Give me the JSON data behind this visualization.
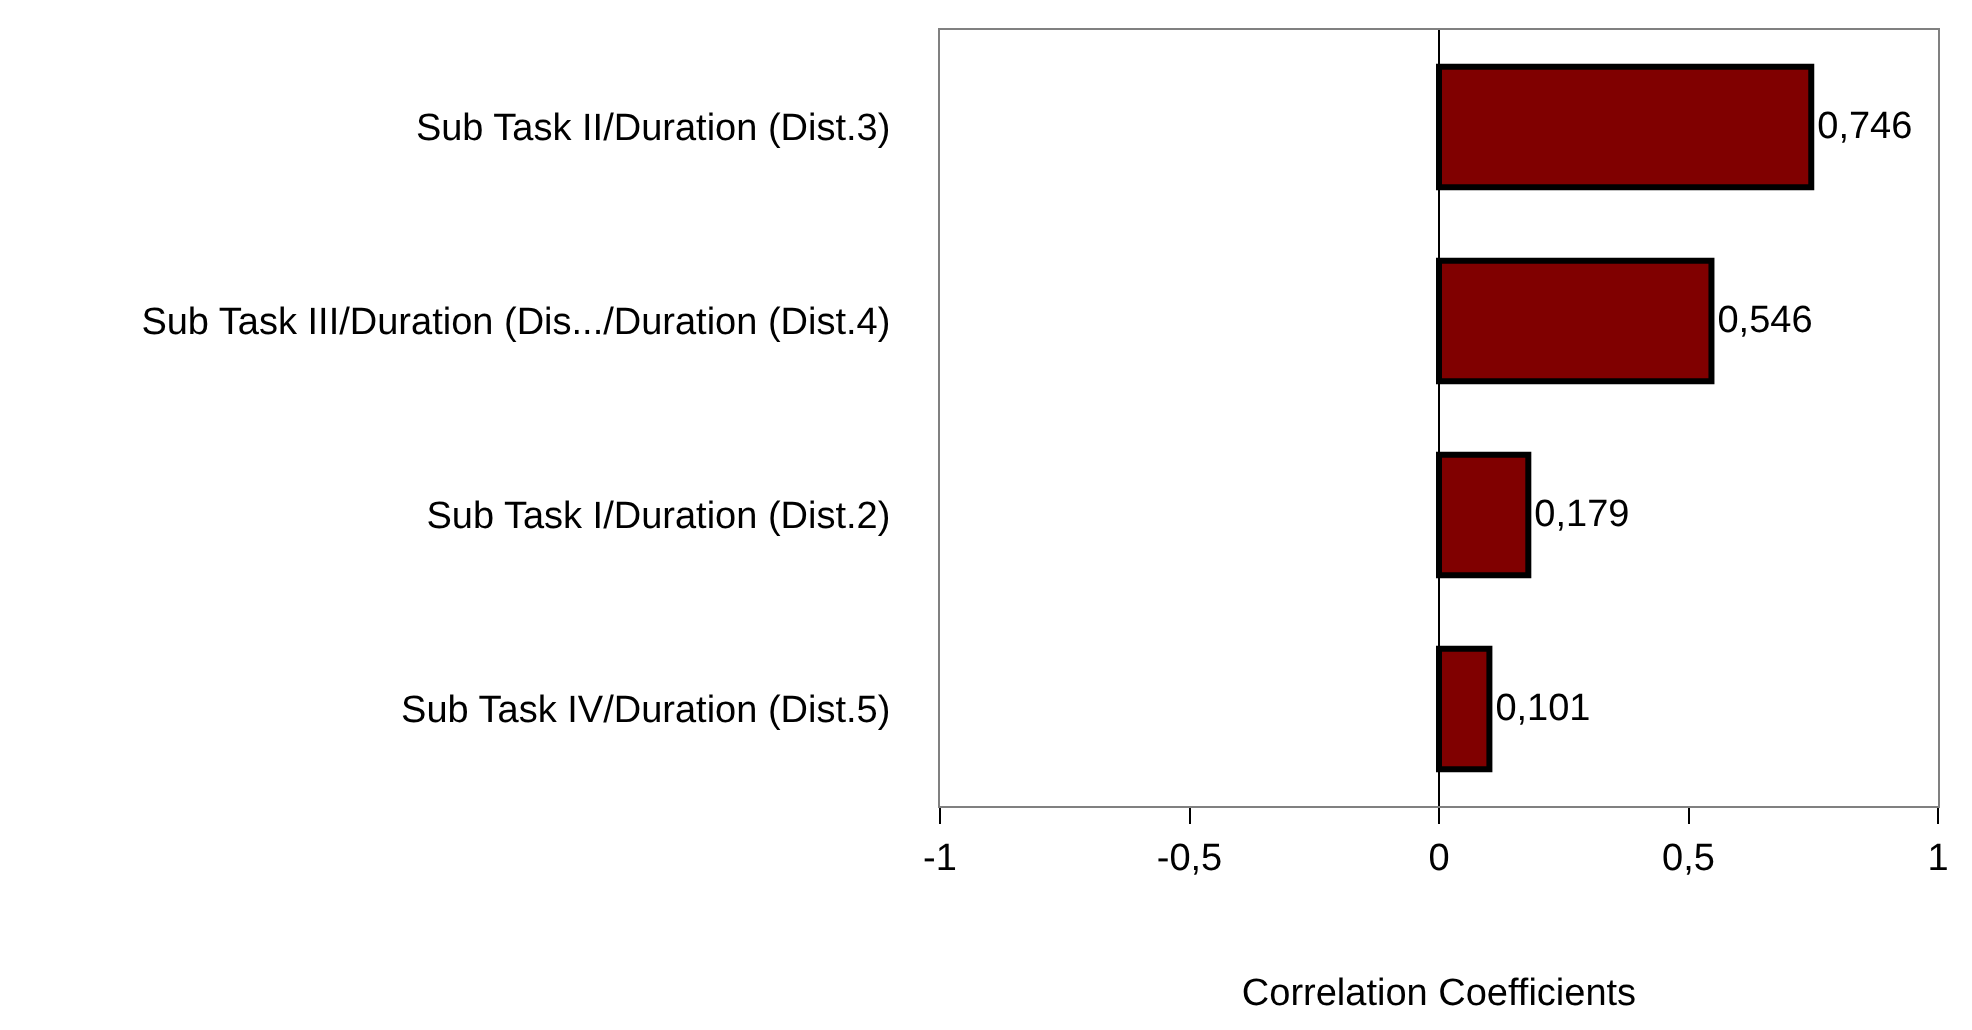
{
  "chart_data": {
    "type": "bar",
    "orientation": "horizontal",
    "xlabel": "Correlation Coefficients",
    "categories": [
      "Sub Task II/Duration (Dist.3)",
      "Sub Task III/Duration (Dis.../Duration (Dist.4)",
      "Sub Task I/Duration (Dist.2)",
      "Sub Task IV/Duration (Dist.5)"
    ],
    "values": [
      0.746,
      0.546,
      0.179,
      0.101
    ],
    "value_labels": [
      "0,746",
      "0,546",
      "0,179",
      "0,101"
    ],
    "color": "#800000",
    "xlim": [
      -1,
      1
    ],
    "xticks": [
      -1,
      {
        "value": -0.5,
        "label": "-0,5"
      },
      0,
      {
        "value": 0.5,
        "label": "0,5"
      },
      1
    ],
    "ref_lines": [
      {
        "axis": "x",
        "value": 0,
        "color": "#000000"
      }
    ]
  }
}
